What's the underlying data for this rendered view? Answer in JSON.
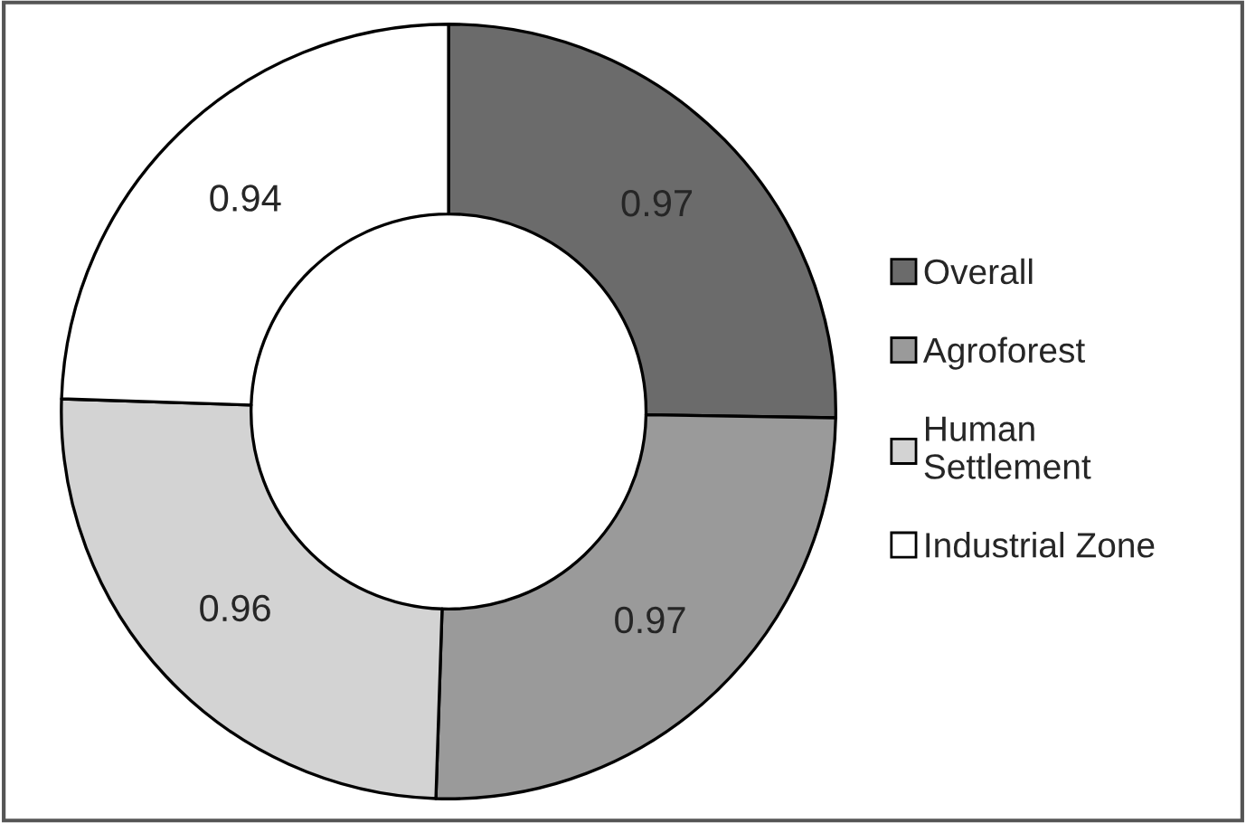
{
  "chart_data": {
    "type": "donut",
    "categories": [
      "Overall",
      "Agroforest",
      "Human\nSettlement",
      "Industrial Zone"
    ],
    "values": [
      0.97,
      0.97,
      0.96,
      0.94
    ],
    "colors": [
      "#6b6b6b",
      "#9a9a9a",
      "#d3d3d3",
      "#ffffff"
    ],
    "data_labels": true,
    "legend": "right"
  }
}
